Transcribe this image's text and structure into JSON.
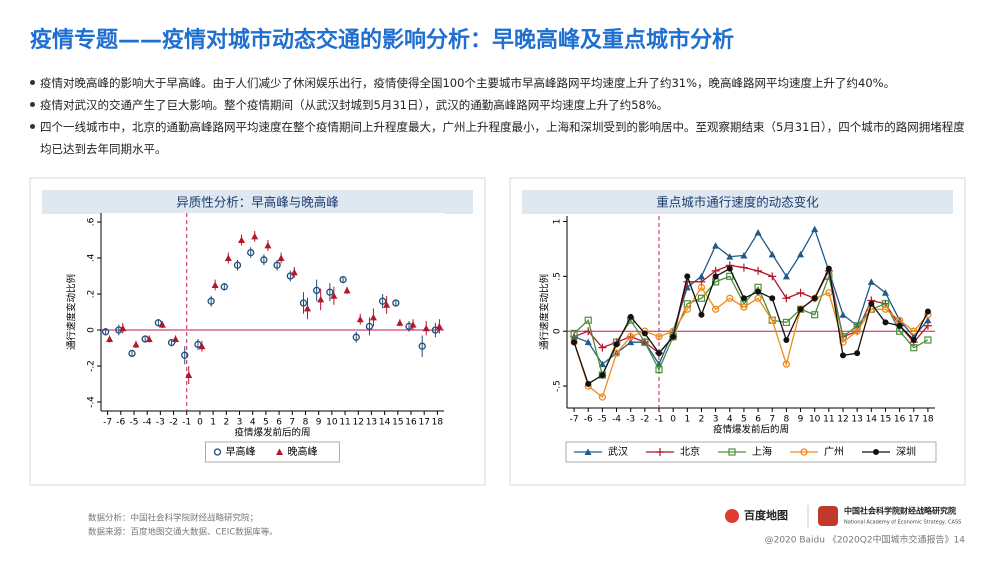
{
  "title": "疫情专题——疫情对城市动态交通的影响分析：早晚高峰及重点城市分析",
  "bullets": [
    "疫情对晚高峰的影响大于早高峰。由于人们减少了休闲娱乐出行，疫情使得全国100个主要城市早高峰路网平均速度上升了约31%，晚高峰路网平均速度上升了约40%。",
    "疫情对武汉的交通产生了巨大影响。整个疫情期间（从武汉封城到5月31日），武汉的通勤高峰路网平均速度上升了约58%。",
    "四个一线城市中，北京的通勤高峰路网平均速度在整个疫情期间上升程度最大，广州上升程度最小，上海和深圳受到的影响居中。至观察期结束（5月31日），四个城市的路网拥堵程度均已达到去年同期水平。"
  ],
  "chart_data": [
    {
      "type": "scatter",
      "title": "异质性分析：早高峰与晚高峰",
      "x_label": "疫情爆发前后的周",
      "y_label": "通行速度变动比例",
      "x": [
        -7,
        -6,
        -5,
        -4,
        -3,
        -2,
        -1,
        0,
        1,
        2,
        3,
        4,
        5,
        6,
        7,
        8,
        9,
        10,
        11,
        12,
        13,
        14,
        15,
        16,
        17,
        18
      ],
      "xlim": [
        -7.5,
        18.5
      ],
      "xticks": [
        -7,
        -6,
        -5,
        -4,
        -3,
        -2,
        -1,
        0,
        1,
        2,
        3,
        4,
        5,
        6,
        7,
        8,
        9,
        10,
        11,
        12,
        13,
        14,
        15,
        16,
        17,
        18
      ],
      "ylim": [
        -0.45,
        0.65
      ],
      "yticks": [
        {
          "value": -0.4,
          "label": "-.4"
        },
        {
          "value": -0.2,
          "label": "-.2"
        },
        0,
        {
          "value": 0.2,
          "label": ".2"
        },
        {
          "value": 0.4,
          "label": ".4"
        },
        {
          "value": 0.6,
          "label": ".6"
        }
      ],
      "reference_x": -1,
      "reference_y": 0,
      "series": [
        {
          "name": "早高峰",
          "color": "#1f4e79",
          "marker": "circle",
          "values": [
            -0.01,
            0.0,
            -0.13,
            -0.05,
            0.04,
            -0.07,
            -0.14,
            -0.08,
            0.16,
            0.24,
            0.36,
            0.43,
            0.39,
            0.36,
            0.3,
            0.15,
            0.22,
            0.21,
            0.28,
            -0.04,
            0.02,
            0.16,
            0.15,
            0.02,
            -0.09,
            0.0
          ],
          "errors": [
            0.02,
            0.03,
            0.02,
            0.02,
            0.02,
            0.02,
            0.05,
            0.03,
            0.03,
            0.02,
            0.03,
            0.03,
            0.03,
            0.03,
            0.03,
            0.06,
            0.06,
            0.05,
            0.02,
            0.03,
            0.05,
            0.04,
            0.02,
            0.03,
            0.06,
            0.04
          ]
        },
        {
          "name": "晚高峰",
          "color": "#b2182b",
          "marker": "triangle",
          "values": [
            -0.05,
            0.01,
            -0.08,
            -0.05,
            0.03,
            -0.05,
            -0.25,
            -0.09,
            0.25,
            0.4,
            0.5,
            0.52,
            0.47,
            0.4,
            0.32,
            0.12,
            0.17,
            0.19,
            0.22,
            0.06,
            0.07,
            0.14,
            0.04,
            0.03,
            0.01,
            0.02
          ],
          "errors": [
            0.02,
            0.03,
            0.02,
            0.02,
            0.02,
            0.02,
            0.05,
            0.03,
            0.03,
            0.03,
            0.03,
            0.03,
            0.03,
            0.03,
            0.03,
            0.06,
            0.06,
            0.05,
            0.02,
            0.03,
            0.05,
            0.05,
            0.02,
            0.03,
            0.04,
            0.04
          ]
        }
      ]
    },
    {
      "type": "line",
      "title": "重点城市通行速度的动态变化",
      "x_label": "疫情爆发前后的周",
      "y_label": "通行速度变动比例",
      "x": [
        -7,
        -6,
        -5,
        -4,
        -3,
        -2,
        -1,
        0,
        1,
        2,
        3,
        4,
        5,
        6,
        7,
        8,
        9,
        10,
        11,
        12,
        13,
        14,
        15,
        16,
        17,
        18
      ],
      "xlim": [
        -7.5,
        18.5
      ],
      "xticks": [
        -7,
        -6,
        -5,
        -4,
        -3,
        -2,
        -1,
        0,
        1,
        2,
        3,
        4,
        5,
        6,
        7,
        8,
        9,
        10,
        11,
        12,
        13,
        14,
        15,
        16,
        17,
        18
      ],
      "ylim": [
        -0.7,
        1.05
      ],
      "yticks": [
        {
          "value": -0.5,
          "label": "-.5"
        },
        0,
        {
          "value": 0.5,
          "label": ".5"
        },
        1
      ],
      "reference_x": -1,
      "reference_y": 0,
      "series": [
        {
          "name": "武汉",
          "color": "#1f5a8c",
          "marker": "triangle",
          "values": [
            -0.05,
            -0.1,
            -0.3,
            -0.2,
            -0.1,
            -0.1,
            -0.3,
            0.0,
            0.4,
            0.5,
            0.78,
            0.68,
            0.69,
            0.9,
            0.7,
            0.5,
            0.7,
            0.93,
            0.55,
            0.15,
            0.05,
            0.45,
            0.35,
            0.1,
            -0.05,
            0.1
          ]
        },
        {
          "name": "北京",
          "color": "#b2182b",
          "marker": "plus",
          "values": [
            -0.05,
            0.0,
            -0.15,
            -0.1,
            -0.05,
            -0.1,
            -0.2,
            -0.05,
            0.45,
            0.45,
            0.55,
            0.6,
            0.58,
            0.55,
            0.5,
            0.3,
            0.35,
            0.3,
            0.55,
            -0.05,
            0.0,
            0.28,
            0.25,
            0.05,
            -0.1,
            0.05
          ]
        },
        {
          "name": "上海",
          "color": "#4d8f3a",
          "marker": "square",
          "values": [
            -0.02,
            0.1,
            -0.4,
            -0.1,
            0.1,
            -0.1,
            -0.35,
            -0.05,
            0.25,
            0.3,
            0.45,
            0.5,
            0.25,
            0.4,
            0.1,
            0.08,
            0.2,
            0.15,
            0.5,
            -0.05,
            0.05,
            0.2,
            0.25,
            0.0,
            -0.15,
            -0.08
          ]
        },
        {
          "name": "广州",
          "color": "#f08a1c",
          "marker": "circle",
          "values": [
            -0.1,
            -0.5,
            -0.6,
            -0.2,
            -0.05,
            0.0,
            -0.05,
            0.0,
            0.2,
            0.4,
            0.2,
            0.3,
            0.22,
            0.3,
            0.1,
            -0.3,
            0.2,
            0.3,
            0.35,
            -0.1,
            0.0,
            0.2,
            0.2,
            0.1,
            0.0,
            0.15
          ]
        },
        {
          "name": "深圳",
          "color": "#111111",
          "marker": "dot",
          "values": [
            -0.1,
            -0.48,
            -0.4,
            -0.12,
            0.13,
            -0.02,
            -0.2,
            -0.05,
            0.5,
            0.15,
            0.5,
            0.57,
            0.3,
            0.36,
            0.3,
            -0.08,
            0.2,
            0.3,
            0.57,
            -0.22,
            -0.2,
            0.25,
            0.08,
            0.05,
            -0.08,
            0.18
          ]
        }
      ]
    }
  ],
  "footer": {
    "analysis": "数据分析：中国社会科学院财经战略研究院；",
    "source": "数据来源：百度地图交通大数据、CEIC数据库等。",
    "logo_baidu": "百度地图",
    "logo_cass": "中国社会科学院财经战略研究院",
    "logo_cass_en": "National Academy of Economic Strategy, CASS",
    "copyright": "@2020 Baidu 《2020Q2中国城市交通报告》14"
  }
}
